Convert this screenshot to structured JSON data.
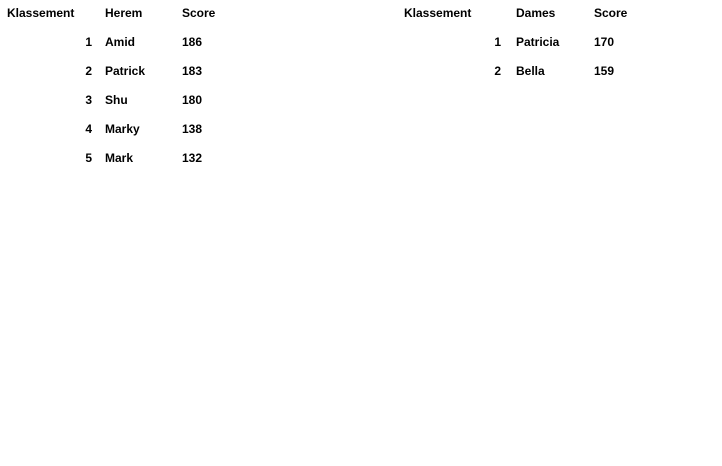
{
  "men": {
    "headers": {
      "rank": "Klassement",
      "name": "Herem",
      "score": "Score"
    },
    "rows": [
      {
        "rank": "1",
        "name": "Amid",
        "score": "186"
      },
      {
        "rank": "2",
        "name": "Patrick",
        "score": "183"
      },
      {
        "rank": "3",
        "name": "Shu",
        "score": "180"
      },
      {
        "rank": "4",
        "name": "Marky",
        "score": "138"
      },
      {
        "rank": "5",
        "name": "Mark",
        "score": "132"
      }
    ]
  },
  "women": {
    "headers": {
      "rank": "Klassement",
      "name": "Dames",
      "score": "Score"
    },
    "rows": [
      {
        "rank": "1",
        "name": "Patricia",
        "score": "170"
      },
      {
        "rank": "2",
        "name": "Bella",
        "score": "159"
      }
    ]
  }
}
